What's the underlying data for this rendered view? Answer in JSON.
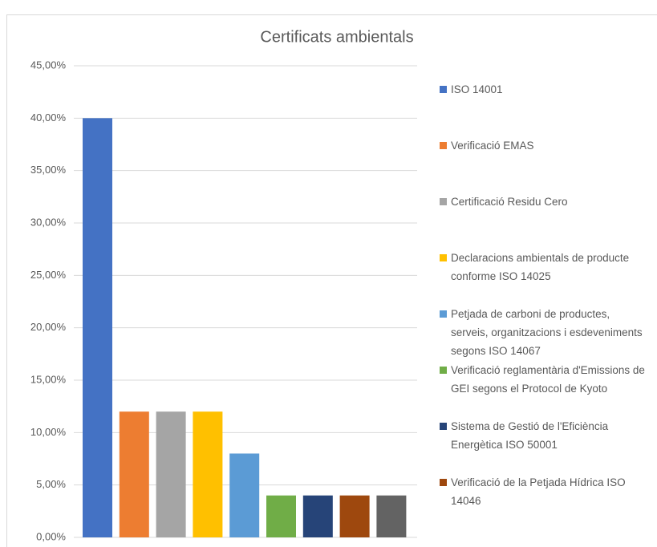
{
  "chart_data": {
    "type": "bar",
    "title": "Certificats ambientals",
    "series": [
      {
        "name": "ISO 14001",
        "color": "#4472c4",
        "values": [
          40
        ]
      },
      {
        "name": "Verificació EMAS",
        "color": "#ed7d31",
        "values": [
          12
        ]
      },
      {
        "name": "Certificació Residu Cero",
        "color": "#a5a5a5",
        "values": [
          12
        ]
      },
      {
        "name": "Declaracions ambientals de producte conforme ISO 14025",
        "color": "#ffc000",
        "values": [
          12
        ]
      },
      {
        "name": "Petjada de carboni de productes, serveis, organitzacions i esdeveniments segons ISO 14067",
        "color": "#5b9bd5",
        "values": [
          8
        ]
      },
      {
        "name": "Verificació reglamentària d'Emissions de GEI segons el Protocol de Kyoto",
        "color": "#70ad47",
        "values": [
          4
        ]
      },
      {
        "name": "Sistema de Gestió de l'Eficiència Energètica ISO 50001",
        "color": "#264478",
        "values": [
          4
        ]
      },
      {
        "name": "Verificació de la Petjada Hídrica ISO 14046",
        "color": "#9e480e",
        "values": [
          4
        ]
      },
      {
        "color": "#636363",
        "values": [
          4
        ]
      }
    ],
    "ylim": [
      0,
      45
    ],
    "yticks": [
      {
        "value": 0,
        "label": "0,00%"
      },
      {
        "value": 5,
        "label": "5,00%"
      },
      {
        "value": 10,
        "label": "10,00%"
      },
      {
        "value": 15,
        "label": "15,00%"
      },
      {
        "value": 20,
        "label": "20,00%"
      },
      {
        "value": 25,
        "label": "25,00%"
      },
      {
        "value": 30,
        "label": "30,00%"
      },
      {
        "value": 35,
        "label": "35,00%"
      },
      {
        "value": 40,
        "label": "40,00%"
      },
      {
        "value": 45,
        "label": "45,00%"
      }
    ],
    "grid": true,
    "legend": "right"
  }
}
